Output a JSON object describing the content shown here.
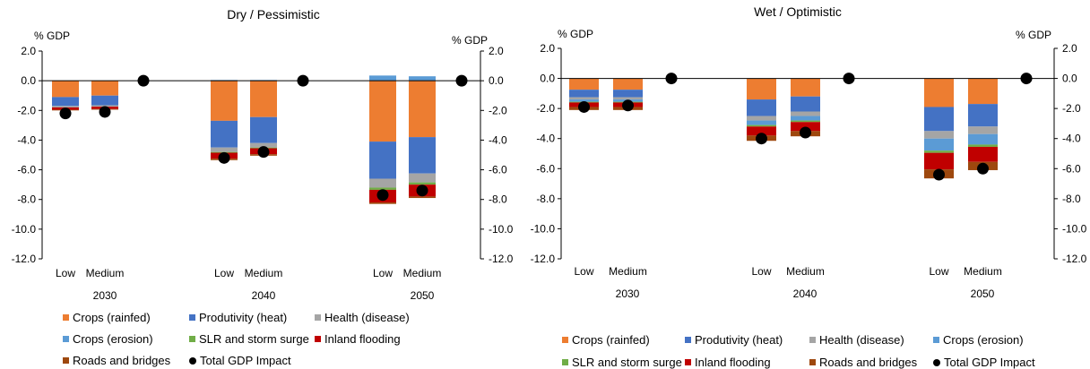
{
  "chart_data": [
    {
      "type": "bar",
      "stacked": true,
      "title": "Dry / Pessimistic",
      "y_label_left": "% GDP",
      "y_label_right": "% GDP",
      "ylim": [
        -12,
        2
      ],
      "y_ticks": [
        "2.0",
        "0.0",
        "-2.0",
        "-4.0",
        "-6.0",
        "-8.0",
        "-10.0",
        "-12.0"
      ],
      "groups": [
        "2030",
        "2040",
        "2050"
      ],
      "categories": [
        "Low",
        "Medium"
      ],
      "series": [
        {
          "name": "Crops (rainfed)",
          "color": "#ED7D31",
          "values": [
            [
              -1.1,
              -1.0
            ],
            [
              -2.7,
              -2.45
            ],
            [
              -4.1,
              -3.8
            ]
          ]
        },
        {
          "name": "Produtivity (heat)",
          "color": "#4472C4",
          "values": [
            [
              -0.6,
              -0.65
            ],
            [
              -1.8,
              -1.75
            ],
            [
              -2.5,
              -2.45
            ]
          ]
        },
        {
          "name": "Health (disease)",
          "color": "#A5A5A5",
          "values": [
            [
              -0.1,
              -0.1
            ],
            [
              -0.3,
              -0.3
            ],
            [
              -0.6,
              -0.6
            ]
          ]
        },
        {
          "name": "Crops (erosion)",
          "color": "#5B9BD5",
          "values": [
            [
              0.0,
              0.0
            ],
            [
              0.05,
              0.05
            ],
            [
              0.35,
              0.3
            ]
          ]
        },
        {
          "name": "SLR and storm surge",
          "color": "#70AD47",
          "values": [
            [
              0.0,
              0.0
            ],
            [
              -0.05,
              -0.05
            ],
            [
              -0.15,
              -0.15
            ]
          ]
        },
        {
          "name": "Inland flooding",
          "color": "#C00000",
          "values": [
            [
              -0.15,
              -0.15
            ],
            [
              -0.4,
              -0.4
            ],
            [
              -0.85,
              -0.8
            ]
          ]
        },
        {
          "name": "Roads and bridges",
          "color": "#9E480E",
          "values": [
            [
              -0.05,
              -0.05
            ],
            [
              -0.1,
              -0.1
            ],
            [
              -0.1,
              -0.1
            ]
          ]
        }
      ],
      "total_gdp_impact": {
        "name": "Total GDP Impact",
        "values": [
          [
            -2.2,
            -2.1
          ],
          [
            -5.2,
            -4.8
          ],
          [
            -7.7,
            -7.4
          ]
        ]
      },
      "reference_dot": [
        0,
        0,
        0
      ],
      "legend_position": "bottom"
    },
    {
      "type": "bar",
      "stacked": true,
      "title": "Wet / Optimistic",
      "y_label_left": "% GDP",
      "y_label_right": "% GDP",
      "ylim": [
        -12,
        2
      ],
      "y_ticks": [
        "2.0",
        "0.0",
        "-2.0",
        "-4.0",
        "-6.0",
        "-8.0",
        "-10.0",
        "-12.0"
      ],
      "groups": [
        "2030",
        "2040",
        "2050"
      ],
      "categories": [
        "Low",
        "Medium"
      ],
      "series": [
        {
          "name": "Crops (rainfed)",
          "color": "#ED7D31",
          "values": [
            [
              -0.75,
              -0.75
            ],
            [
              -1.4,
              -1.2
            ],
            [
              -1.9,
              -1.7
            ]
          ]
        },
        {
          "name": "Produtivity (heat)",
          "color": "#4472C4",
          "values": [
            [
              -0.5,
              -0.5
            ],
            [
              -1.1,
              -1.0
            ],
            [
              -1.6,
              -1.5
            ]
          ]
        },
        {
          "name": "Health (disease)",
          "color": "#A5A5A5",
          "values": [
            [
              -0.15,
              -0.15
            ],
            [
              -0.3,
              -0.3
            ],
            [
              -0.5,
              -0.5
            ]
          ]
        },
        {
          "name": "Crops (erosion)",
          "color": "#5B9BD5",
          "values": [
            [
              -0.15,
              -0.15
            ],
            [
              -0.3,
              -0.3
            ],
            [
              -0.8,
              -0.7
            ]
          ]
        },
        {
          "name": "SLR and storm surge",
          "color": "#70AD47",
          "values": [
            [
              -0.05,
              -0.05
            ],
            [
              -0.1,
              -0.1
            ],
            [
              -0.15,
              -0.15
            ]
          ]
        },
        {
          "name": "Inland flooding",
          "color": "#C00000",
          "values": [
            [
              -0.3,
              -0.3
            ],
            [
              -0.6,
              -0.6
            ],
            [
              -1.1,
              -1.0
            ]
          ]
        },
        {
          "name": "Roads and bridges",
          "color": "#9E480E",
          "values": [
            [
              -0.2,
              -0.2
            ],
            [
              -0.35,
              -0.35
            ],
            [
              -0.6,
              -0.55
            ]
          ]
        }
      ],
      "total_gdp_impact": {
        "name": "Total GDP Impact",
        "values": [
          [
            -1.9,
            -1.8
          ],
          [
            -4.0,
            -3.6
          ],
          [
            -6.4,
            -6.0
          ]
        ]
      },
      "reference_dot": [
        0,
        0,
        0
      ],
      "legend_position": "bottom"
    }
  ]
}
